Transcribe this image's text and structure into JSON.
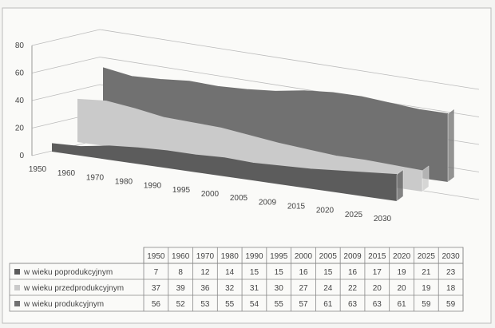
{
  "chart_data": {
    "type": "area3d",
    "categories": [
      "1950",
      "1960",
      "1970",
      "1980",
      "1990",
      "1995",
      "2000",
      "2005",
      "2009",
      "2015",
      "2020",
      "2025",
      "2030"
    ],
    "series": [
      {
        "name": "w wieku poprodukcyjnym",
        "color": "#5c5c5c",
        "values": [
          7,
          8,
          12,
          14,
          15,
          15,
          16,
          15,
          16,
          17,
          19,
          21,
          23
        ]
      },
      {
        "name": "w wieku przedprodukcyjnym",
        "color": "#cacaca",
        "values": [
          37,
          39,
          36,
          32,
          31,
          30,
          27,
          24,
          22,
          20,
          20,
          19,
          18
        ]
      },
      {
        "name": "w wieku produkcyjnym",
        "color": "#717171",
        "values": [
          56,
          52,
          53,
          55,
          54,
          55,
          57,
          61,
          63,
          63,
          61,
          59,
          59
        ]
      }
    ],
    "ylim": [
      0,
      80
    ],
    "yticks": [
      0,
      20,
      40,
      60,
      80
    ],
    "grid": true
  }
}
